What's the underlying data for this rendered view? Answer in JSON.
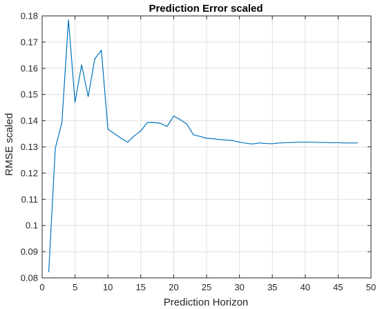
{
  "chart_data": {
    "type": "line",
    "title": "Prediction Error scaled",
    "xlabel": "Prediction Horizon",
    "ylabel": "RMSE scaled",
    "xlim": [
      0,
      50
    ],
    "ylim": [
      0.08,
      0.18
    ],
    "xticks": [
      0,
      5,
      10,
      15,
      20,
      25,
      30,
      35,
      40,
      45,
      50
    ],
    "yticks": [
      0.08,
      0.09,
      0.1,
      0.11,
      0.12,
      0.13,
      0.14,
      0.15,
      0.16,
      0.17,
      0.18
    ],
    "grid": true,
    "box": true,
    "series": [
      {
        "color": "#0072BD",
        "x": [
          1,
          2,
          3,
          4,
          5,
          6,
          7,
          8,
          9,
          10,
          11,
          12,
          13,
          14,
          15,
          16,
          17,
          18,
          19,
          20,
          21,
          22,
          23,
          24,
          25,
          26,
          27,
          28,
          29,
          30,
          31,
          32,
          33,
          34,
          35,
          36,
          37,
          38,
          39,
          40,
          41,
          42,
          43,
          44,
          45,
          46,
          47,
          48
        ],
        "y": [
          0.0822,
          0.1295,
          0.1392,
          0.1785,
          0.147,
          0.1613,
          0.1492,
          0.1635,
          0.1669,
          0.1368,
          0.135,
          0.1333,
          0.1318,
          0.1342,
          0.1361,
          0.1393,
          0.1393,
          0.139,
          0.1378,
          0.1418,
          0.1404,
          0.1387,
          0.1346,
          0.134,
          0.1333,
          0.1331,
          0.1328,
          0.1326,
          0.1324,
          0.1318,
          0.1314,
          0.1311,
          0.1315,
          0.1313,
          0.1312,
          0.1315,
          0.1316,
          0.1317,
          0.1318,
          0.1318,
          0.1318,
          0.1317,
          0.1317,
          0.1316,
          0.1316,
          0.1315,
          0.1315,
          0.1315
        ]
      }
    ]
  }
}
